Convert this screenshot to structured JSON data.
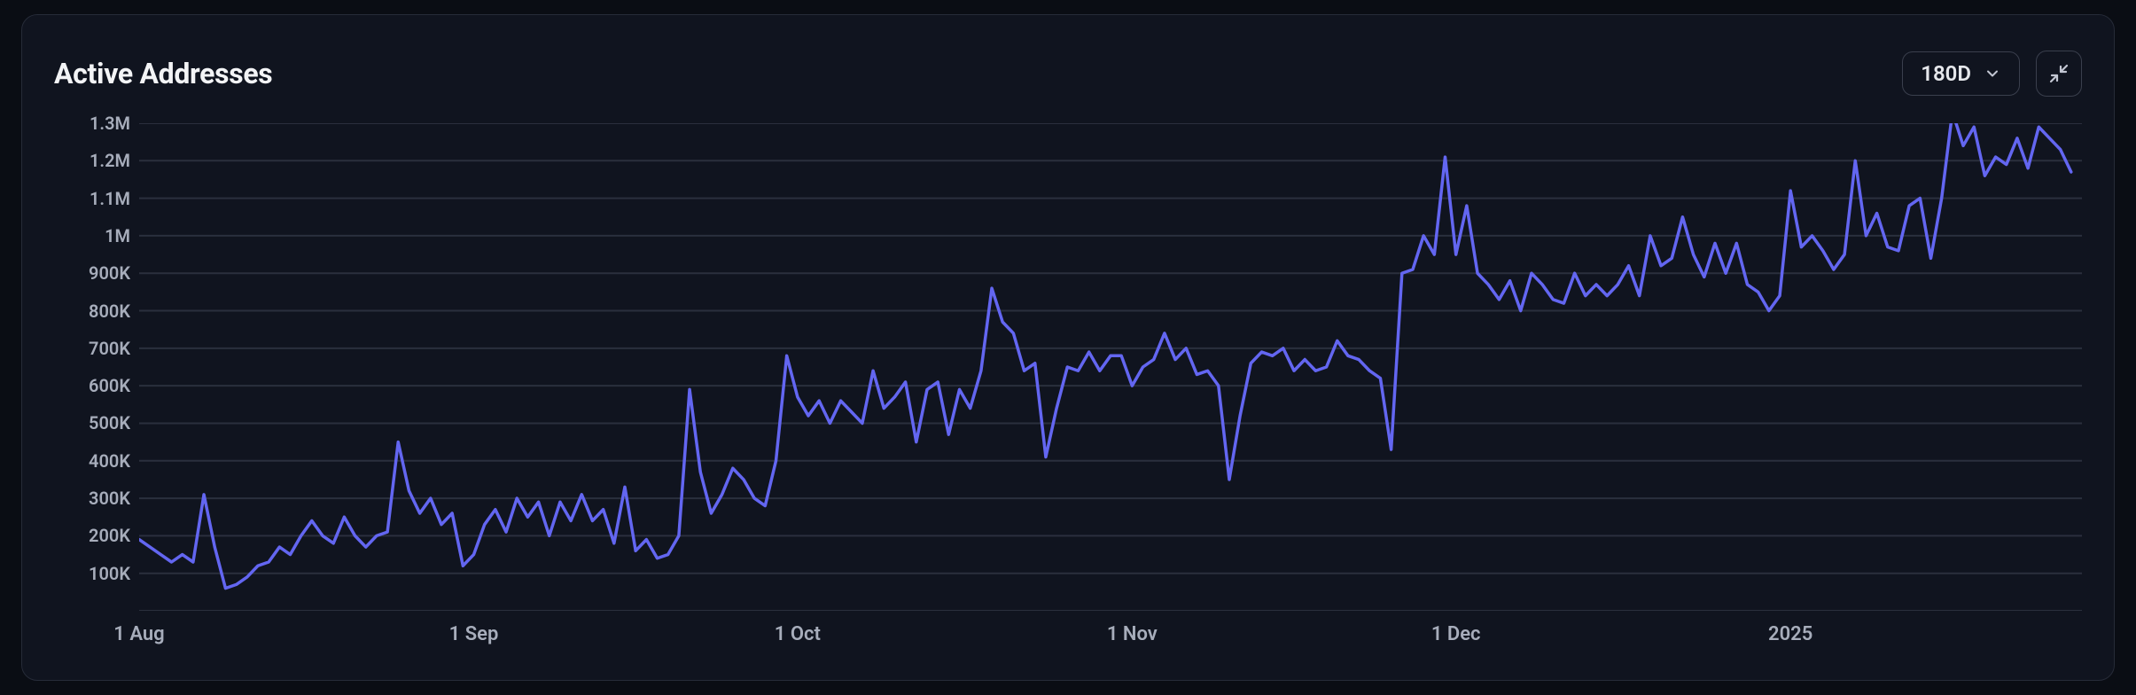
{
  "card": {
    "title": "Active Addresses",
    "range_selector": {
      "label": "180D"
    }
  },
  "chart": {
    "type": "line",
    "line_color": "#6366f1",
    "line_width": 3.5,
    "grid_color": "#2a2f3d",
    "background": "#10141f",
    "card_border": "#262b38",
    "text_color": "#a7adbb",
    "title_color": "#f3f4f6",
    "y": {
      "min": 0,
      "max": 1300000,
      "ticks": [
        {
          "v": 100000,
          "label": "100K"
        },
        {
          "v": 200000,
          "label": "200K"
        },
        {
          "v": 300000,
          "label": "300K"
        },
        {
          "v": 400000,
          "label": "400K"
        },
        {
          "v": 500000,
          "label": "500K"
        },
        {
          "v": 600000,
          "label": "600K"
        },
        {
          "v": 700000,
          "label": "700K"
        },
        {
          "v": 800000,
          "label": "800K"
        },
        {
          "v": 900000,
          "label": "900K"
        },
        {
          "v": 1000000,
          "label": "1M"
        },
        {
          "v": 1100000,
          "label": "1.1M"
        },
        {
          "v": 1200000,
          "label": "1.2M"
        },
        {
          "v": 1300000,
          "label": "1.3M"
        }
      ]
    },
    "x": {
      "min": 0,
      "max": 180,
      "ticks": [
        {
          "v": 0,
          "label": "1 Aug"
        },
        {
          "v": 31,
          "label": "1 Sep"
        },
        {
          "v": 61,
          "label": "1 Oct"
        },
        {
          "v": 92,
          "label": "1 Nov"
        },
        {
          "v": 122,
          "label": "1 Dec"
        },
        {
          "v": 153,
          "label": "2025"
        }
      ]
    },
    "series": [
      190000,
      170000,
      150000,
      130000,
      150000,
      130000,
      310000,
      170000,
      60000,
      70000,
      90000,
      120000,
      130000,
      170000,
      150000,
      200000,
      240000,
      200000,
      180000,
      250000,
      200000,
      170000,
      200000,
      210000,
      450000,
      320000,
      260000,
      300000,
      230000,
      260000,
      120000,
      150000,
      230000,
      270000,
      210000,
      300000,
      250000,
      290000,
      200000,
      290000,
      240000,
      310000,
      240000,
      270000,
      180000,
      330000,
      160000,
      190000,
      140000,
      150000,
      200000,
      590000,
      370000,
      260000,
      310000,
      380000,
      350000,
      300000,
      280000,
      400000,
      680000,
      570000,
      520000,
      560000,
      500000,
      560000,
      530000,
      500000,
      640000,
      540000,
      570000,
      610000,
      450000,
      590000,
      610000,
      470000,
      590000,
      540000,
      640000,
      860000,
      770000,
      740000,
      640000,
      660000,
      410000,
      540000,
      650000,
      640000,
      690000,
      640000,
      680000,
      680000,
      600000,
      650000,
      670000,
      740000,
      670000,
      700000,
      630000,
      640000,
      600000,
      350000,
      520000,
      660000,
      690000,
      680000,
      700000,
      640000,
      670000,
      640000,
      650000,
      720000,
      680000,
      670000,
      640000,
      620000,
      430000,
      900000,
      910000,
      1000000,
      950000,
      1210000,
      950000,
      1080000,
      900000,
      870000,
      830000,
      880000,
      800000,
      900000,
      870000,
      830000,
      820000,
      900000,
      840000,
      870000,
      840000,
      870000,
      920000,
      840000,
      1000000,
      920000,
      940000,
      1050000,
      950000,
      890000,
      980000,
      900000,
      980000,
      870000,
      850000,
      800000,
      840000,
      1120000,
      970000,
      1000000,
      960000,
      910000,
      950000,
      1200000,
      1000000,
      1060000,
      970000,
      960000,
      1080000,
      1100000,
      940000,
      1100000,
      1330000,
      1240000,
      1290000,
      1160000,
      1210000,
      1190000,
      1260000,
      1180000,
      1290000,
      1260000,
      1230000,
      1170000
    ]
  }
}
